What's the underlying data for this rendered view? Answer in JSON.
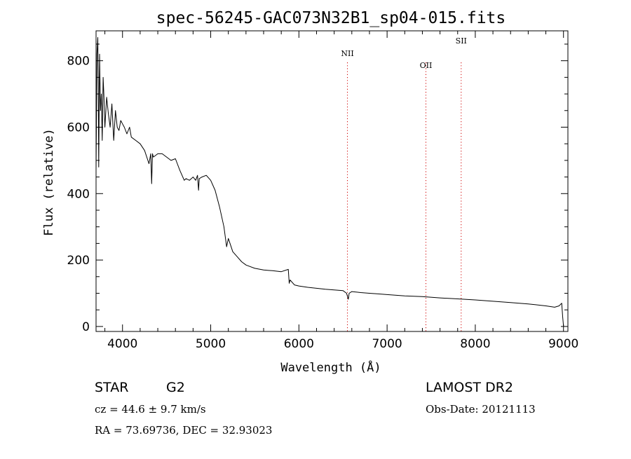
{
  "title": "spec-56245-GAC073N32B1_sp04-015.fits",
  "info": {
    "object_class": "STAR",
    "subclass": "G2",
    "survey": "LAMOST DR2",
    "cz": "cz = 44.6 ± 9.7 km/s",
    "obs_date": "Obs-Date: 20121113",
    "coords": "RA =  73.69736, DEC =  32.93023"
  },
  "colors": {
    "spectrum": "#000000",
    "line_marker": "#d00000",
    "axes": "#000000"
  },
  "chart_data": {
    "type": "line",
    "title": "spec-56245-GAC073N32B1_sp04-015.fits",
    "xlabel": "Wavelength (Å)",
    "ylabel": "Flux (relative)",
    "xlim": [
      3700,
      9050
    ],
    "ylim": [
      -15,
      890
    ],
    "xticks": [
      4000,
      5000,
      6000,
      7000,
      8000,
      9000
    ],
    "yticks": [
      0,
      200,
      400,
      600,
      800
    ],
    "grid": false,
    "legend": "none",
    "line_markers": [
      {
        "label": "NII",
        "x": 6550
      },
      {
        "label": "OII",
        "x": 7440
      },
      {
        "label": "SII",
        "x": 7840
      }
    ],
    "series": [
      {
        "x": [
          3700,
          3710,
          3720,
          3725,
          3730,
          3740,
          3750,
          3760,
          3770,
          3780,
          3790,
          3800,
          3820,
          3840,
          3860,
          3880,
          3900,
          3920,
          3940,
          3960,
          3980,
          4000,
          4020,
          4050,
          4080,
          4100,
          4150,
          4200,
          4250,
          4300,
          4320,
          4330,
          4340,
          4350,
          4400,
          4450,
          4500,
          4550,
          4600,
          4650,
          4700,
          4720,
          4760,
          4800,
          4830,
          4850,
          4862,
          4870,
          4900,
          4950,
          5000,
          5050,
          5100,
          5150,
          5180,
          5200,
          5250,
          5300,
          5350,
          5400,
          5500,
          5600,
          5700,
          5800,
          5880,
          5890,
          5900,
          5950,
          6000,
          6100,
          6200,
          6300,
          6400,
          6500,
          6540,
          6560,
          6570,
          6600,
          6700,
          6800,
          6900,
          7000,
          7200,
          7400,
          7600,
          7800,
          8000,
          8200,
          8400,
          8600,
          8800,
          8900,
          8950,
          8980,
          8990,
          9000
        ],
        "y": [
          470,
          820,
          870,
          730,
          480,
          820,
          650,
          700,
          560,
          750,
          690,
          600,
          690,
          640,
          600,
          670,
          560,
          650,
          600,
          590,
          620,
          610,
          600,
          580,
          600,
          570,
          560,
          550,
          530,
          490,
          520,
          430,
          520,
          510,
          520,
          520,
          510,
          500,
          505,
          470,
          440,
          445,
          440,
          450,
          440,
          455,
          410,
          445,
          450,
          455,
          440,
          410,
          360,
          300,
          240,
          265,
          225,
          210,
          195,
          185,
          175,
          170,
          168,
          165,
          172,
          130,
          140,
          125,
          122,
          118,
          115,
          112,
          110,
          108,
          100,
          82,
          100,
          105,
          102,
          100,
          98,
          96,
          92,
          90,
          86,
          83,
          80,
          76,
          72,
          68,
          62,
          58,
          62,
          70,
          30,
          2
        ]
      }
    ]
  }
}
